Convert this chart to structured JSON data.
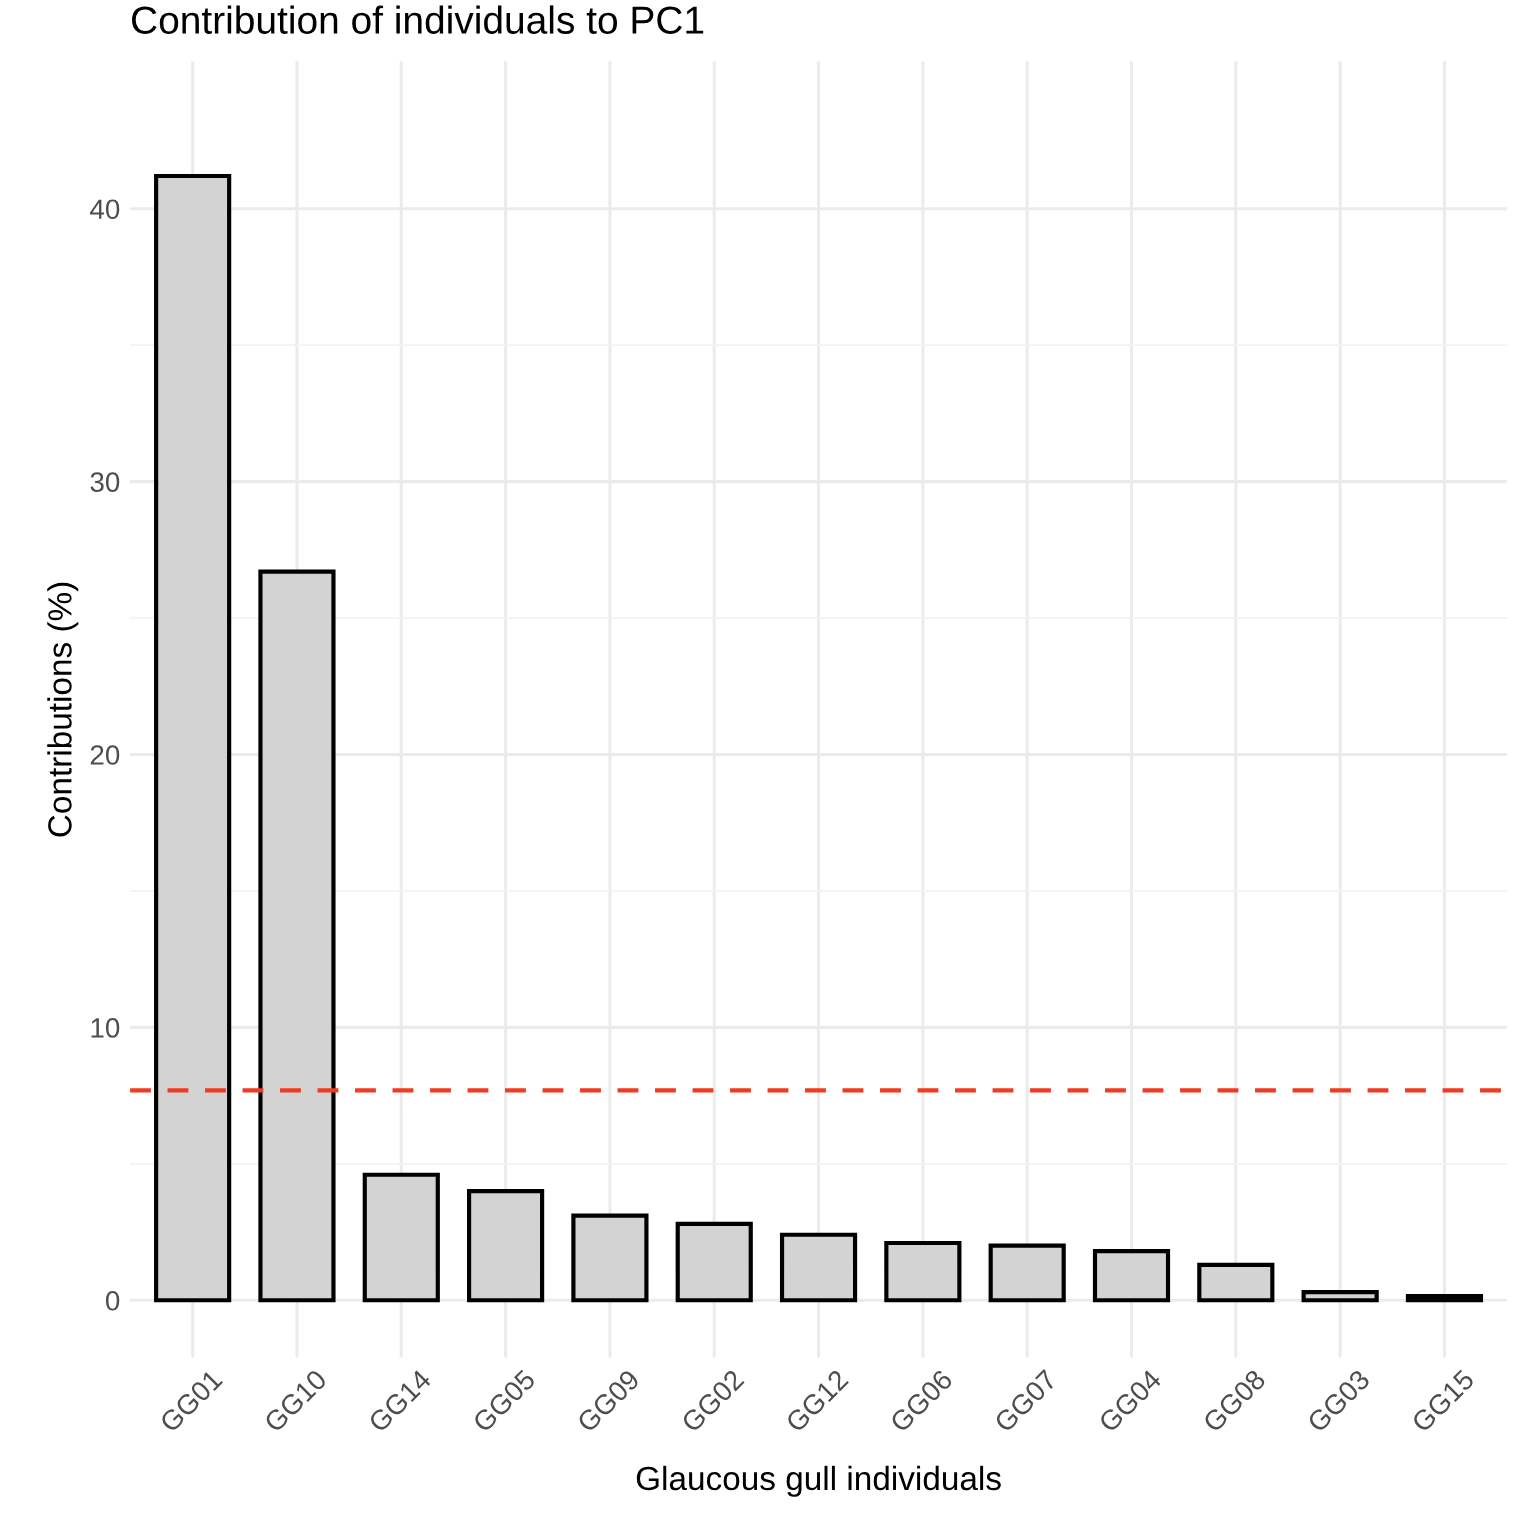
{
  "chart_data": {
    "type": "bar",
    "title": "Contribution of individuals to PC1",
    "xlabel": "Glaucous gull individuals",
    "ylabel": "Contributions (%)",
    "categories": [
      "GG01",
      "GG10",
      "GG14",
      "GG05",
      "GG09",
      "GG02",
      "GG12",
      "GG06",
      "GG07",
      "GG04",
      "GG08",
      "GG03",
      "GG15"
    ],
    "values": [
      41.2,
      26.7,
      4.6,
      4.0,
      3.1,
      2.8,
      2.4,
      2.1,
      2.0,
      1.8,
      1.3,
      0.3,
      0.15
    ],
    "color": "#d3d3d3",
    "ylim": [
      -2.1,
      45.4
    ],
    "yticks": [
      0,
      {
        "value": 5,
        "label": null
      },
      10,
      {
        "value": 15,
        "label": null
      },
      20,
      {
        "value": 25,
        "label": null
      },
      30,
      {
        "value": 35,
        "label": null
      },
      40
    ],
    "grid": true,
    "ref_lines": [
      {
        "axis": "y",
        "value": 7.69,
        "color": "#f03b20",
        "line_style": "dashed"
      }
    ]
  }
}
